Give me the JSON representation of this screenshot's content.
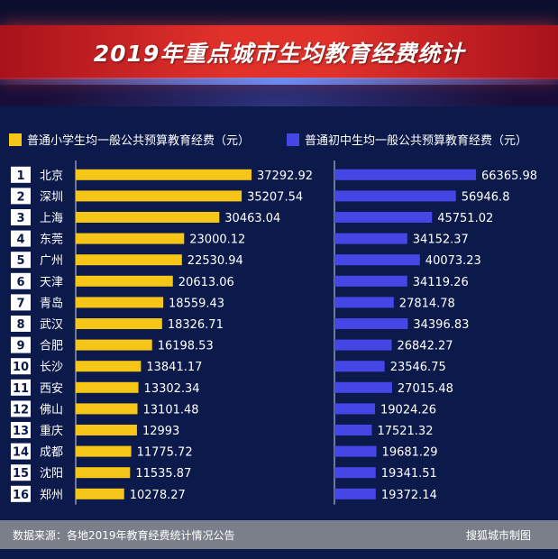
{
  "title": "2019年重点城市生均教育经费统计",
  "legend": {
    "left": "普通小学生均一般公共预算教育经费（元）",
    "right": "普通初中生均一般公共预算教育经费（元）"
  },
  "colors": {
    "primary_bar": "#f5c518",
    "junior_bar": "#4646e6",
    "rank_badge": "#ffffff",
    "axis_line": "#cfd6ea"
  },
  "chart_data": {
    "type": "bar",
    "orientation": "horizontal",
    "ranks": [
      "1",
      "2",
      "3",
      "4",
      "5",
      "6",
      "7",
      "8",
      "9",
      "10",
      "11",
      "12",
      "13",
      "14",
      "15",
      "16"
    ],
    "categories": [
      "北京",
      "深圳",
      "上海",
      "东莞",
      "广州",
      "天津",
      "青岛",
      "武汉",
      "合肥",
      "长沙",
      "西安",
      "佛山",
      "重庆",
      "成都",
      "沈阳",
      "郑州"
    ],
    "series": [
      {
        "name": "普通小学生均一般公共预算教育经费（元）",
        "values": [
          37292.92,
          35207.54,
          30463.04,
          23000.12,
          22530.94,
          20613.06,
          18559.43,
          18326.71,
          16198.53,
          13841.17,
          13302.34,
          13101.48,
          12993,
          11775.72,
          11535.87,
          10278.27
        ],
        "labels": [
          "37292.92",
          "35207.54",
          "30463.04",
          "23000.12",
          "22530.94",
          "20613.06",
          "18559.43",
          "18326.71",
          "16198.53",
          "13841.17",
          "13302.34",
          "13101.48",
          "12993",
          "11775.72",
          "11535.87",
          "10278.27"
        ]
      },
      {
        "name": "普通初中生均一般公共预算教育经费（元）",
        "values": [
          66365.98,
          56946.8,
          45751.02,
          34152.37,
          40073.23,
          34119.26,
          27814.78,
          34396.83,
          26842.27,
          23546.75,
          27015.48,
          19024.26,
          17521.32,
          19681.29,
          19341.51,
          19372.14
        ],
        "labels": [
          "66365.98",
          "56946.8",
          "45751.02",
          "34152.37",
          "40073.23",
          "34119.26",
          "27814.78",
          "34396.83",
          "26842.27",
          "23546.75",
          "27015.48",
          "19024.26",
          "17521.32",
          "19681.29",
          "19341.51",
          "19372.14"
        ]
      }
    ]
  },
  "footer": {
    "source": "数据来源：各地2019年教育经费统计情况公告",
    "credit": "搜狐城市制图"
  }
}
